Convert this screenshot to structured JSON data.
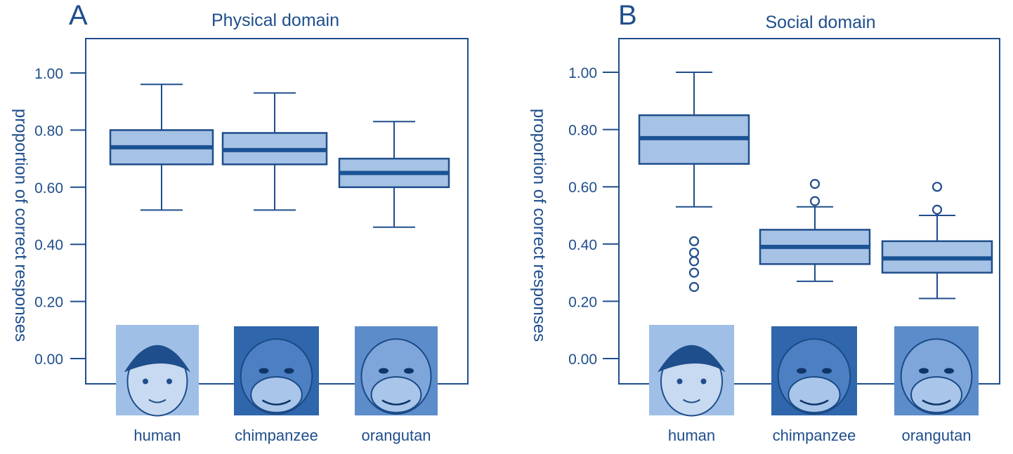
{
  "colors": {
    "ink": "#1f4e8c",
    "box_fill": "#a6c2e4",
    "median": "#1a5294",
    "image_bg": "#6f9bd2"
  },
  "chart_data": [
    {
      "type": "box",
      "panel_label": "A",
      "title": "Physical domain",
      "ylabel": "proportion of correct responses",
      "ylim": [
        0,
        1.1
      ],
      "yticks": [
        "0.00",
        "0.20",
        "0.40",
        "0.60",
        "0.80",
        "1.00"
      ],
      "grid": false,
      "categories": [
        "human",
        "chimpanzee",
        "orangutan"
      ],
      "category_icons": [
        "human-face-icon",
        "chimpanzee-face-icon",
        "orangutan-face-icon"
      ],
      "boxes": [
        {
          "whisker_low": 0.52,
          "q1": 0.68,
          "median": 0.74,
          "q3": 0.8,
          "whisker_high": 0.96,
          "outliers": []
        },
        {
          "whisker_low": 0.52,
          "q1": 0.68,
          "median": 0.73,
          "q3": 0.79,
          "whisker_high": 0.93,
          "outliers": []
        },
        {
          "whisker_low": 0.46,
          "q1": 0.6,
          "median": 0.65,
          "q3": 0.7,
          "whisker_high": 0.83,
          "outliers": []
        }
      ]
    },
    {
      "type": "box",
      "panel_label": "B",
      "title": "Social domain",
      "ylabel": "proportion of correct responses",
      "ylim": [
        0,
        1.1
      ],
      "yticks": [
        "0.00",
        "0.20",
        "0.40",
        "0.60",
        "0.80",
        "1.00"
      ],
      "grid": false,
      "categories": [
        "human",
        "chimpanzee",
        "orangutan"
      ],
      "category_icons": [
        "human-face-icon",
        "chimpanzee-face-icon",
        "orangutan-face-icon"
      ],
      "boxes": [
        {
          "whisker_low": 0.53,
          "q1": 0.68,
          "median": 0.77,
          "q3": 0.85,
          "whisker_high": 1.0,
          "outliers": [
            0.41,
            0.37,
            0.34,
            0.3,
            0.25
          ]
        },
        {
          "whisker_low": 0.27,
          "q1": 0.33,
          "median": 0.39,
          "q3": 0.45,
          "whisker_high": 0.53,
          "outliers": [
            0.61,
            0.55
          ]
        },
        {
          "whisker_low": 0.21,
          "q1": 0.3,
          "median": 0.35,
          "q3": 0.41,
          "whisker_high": 0.5,
          "outliers": [
            0.6,
            0.52
          ]
        }
      ]
    }
  ]
}
